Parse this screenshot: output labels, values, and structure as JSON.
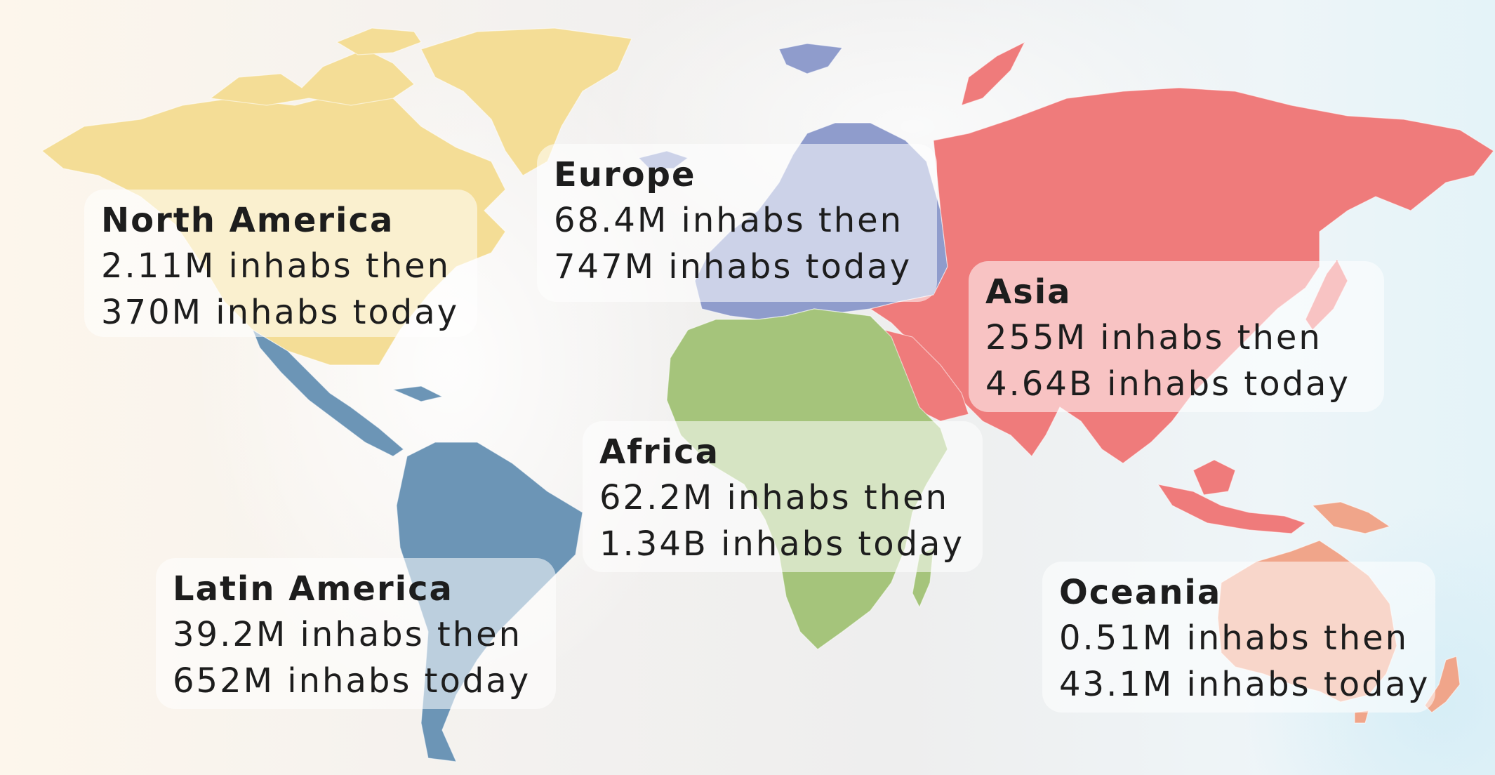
{
  "map": {
    "regions": [
      {
        "id": "north-america",
        "name": "North America",
        "color": "#f4dd96",
        "then": "2.11M inhabs then",
        "today": "370M inhabs today"
      },
      {
        "id": "europe",
        "name": "Europe",
        "color": "#8f9ccc",
        "then": "68.4M inhabs then",
        "today": "747M inhabs today"
      },
      {
        "id": "asia",
        "name": "Asia",
        "color": "#ef7b7b",
        "then": "255M inhabs then",
        "today": "4.64B inhabs today"
      },
      {
        "id": "africa",
        "name": "Africa",
        "color": "#a5c47b",
        "then": "62.2M inhabs then",
        "today": "1.34B inhabs today"
      },
      {
        "id": "latin-america",
        "name": "Latin America",
        "color": "#6c95b6",
        "then": "39.2M inhabs then",
        "today": "652M inhabs today"
      },
      {
        "id": "oceania",
        "name": "Oceania",
        "color": "#f0a58a",
        "then": "0.51M inhabs then",
        "today": "43.1M inhabs today"
      }
    ]
  }
}
